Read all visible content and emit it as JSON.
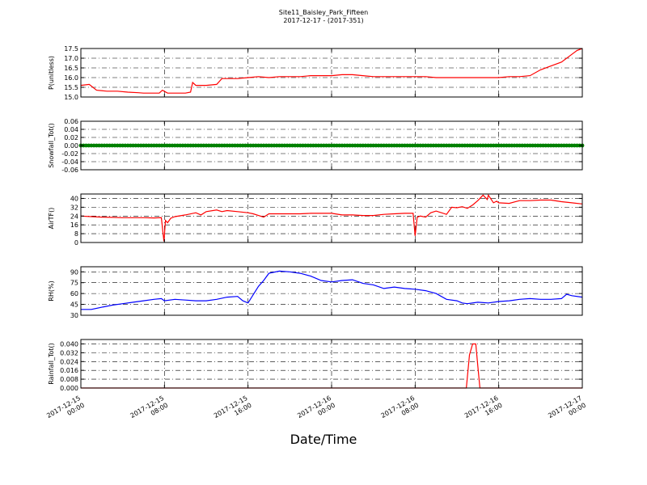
{
  "title": "Site11_Baisley_Park_Fifteen",
  "subtitle": "2017-12-17 - (2017-351)",
  "xlabel": "Date/Time",
  "x_ticks": [
    {
      "value": 0,
      "label": [
        "2017-12-15",
        "00:00"
      ]
    },
    {
      "value": 8,
      "label": [
        "2017-12-15",
        "08:00"
      ]
    },
    {
      "value": 16,
      "label": [
        "2017-12-15",
        "16:00"
      ]
    },
    {
      "value": 24,
      "label": [
        "2017-12-16",
        "00:00"
      ]
    },
    {
      "value": 32,
      "label": [
        "2017-12-16",
        "08:00"
      ]
    },
    {
      "value": 40,
      "label": [
        "2017-12-16",
        "16:00"
      ]
    },
    {
      "value": 48,
      "label": [
        "2017-12-17",
        "00:00"
      ]
    }
  ],
  "chart_data": [
    {
      "type": "line",
      "ylabel": "P(unitless)",
      "ylim": [
        15.0,
        17.5
      ],
      "yticks": [
        15.0,
        15.5,
        16.0,
        16.5,
        17.0,
        17.5
      ],
      "decimals": 1,
      "grid": true,
      "color": "#ff0000",
      "x": [
        0,
        0.8,
        1.5,
        2.5,
        3.5,
        4.5,
        5.5,
        6,
        7,
        7.5,
        7.8,
        8.3,
        9,
        10,
        10.5,
        10.7,
        11,
        12,
        13,
        13.5,
        15,
        16,
        17,
        18,
        19,
        20,
        21,
        22,
        23,
        24,
        25,
        26,
        27,
        28,
        29,
        30,
        31,
        32,
        33,
        34,
        35,
        36,
        37,
        38,
        39,
        40,
        41,
        42,
        43,
        44,
        45,
        46,
        47,
        47.5,
        48
      ],
      "y": [
        15.6,
        15.65,
        15.35,
        15.3,
        15.3,
        15.25,
        15.22,
        15.2,
        15.2,
        15.2,
        15.35,
        15.2,
        15.2,
        15.2,
        15.25,
        15.75,
        15.6,
        15.6,
        15.65,
        15.95,
        15.95,
        16.0,
        16.05,
        16.0,
        16.05,
        16.05,
        16.05,
        16.1,
        16.1,
        16.1,
        16.15,
        16.15,
        16.1,
        16.05,
        16.05,
        16.05,
        16.05,
        16.05,
        16.05,
        16.0,
        16.0,
        16.0,
        16.0,
        16.0,
        16.0,
        16.0,
        16.05,
        16.05,
        16.1,
        16.4,
        16.6,
        16.8,
        17.2,
        17.4,
        17.5
      ]
    },
    {
      "type": "scatter",
      "ylabel": "Snowfall_Tot()",
      "ylim": [
        -0.06,
        0.06
      ],
      "yticks": [
        -0.06,
        -0.04,
        -0.02,
        0.0,
        0.02,
        0.04,
        0.06
      ],
      "decimals": 2,
      "grid": true,
      "color": "#008000",
      "x_start": 0,
      "x_end": 48,
      "x_step": 0.25,
      "value": 0.0
    },
    {
      "type": "line",
      "ylabel": "AirTF()",
      "ylim": [
        0,
        44
      ],
      "yticks": [
        0,
        8,
        16,
        24,
        32,
        40
      ],
      "decimals": 0,
      "grid": true,
      "color": "#ff0000",
      "x": [
        0,
        1,
        2,
        3,
        4,
        5,
        6,
        7,
        7.7,
        7.95,
        8.1,
        8.3,
        8.6,
        9,
        10,
        11,
        11.5,
        12,
        13,
        13.5,
        14,
        15,
        16,
        16.5,
        17,
        17.5,
        18,
        19,
        20,
        21,
        22,
        23,
        24,
        25,
        26,
        27,
        28,
        29,
        30,
        31,
        31.8,
        32.0,
        32.2,
        32.5,
        33,
        33.5,
        34,
        35,
        35.5,
        36,
        36.5,
        37,
        37.5,
        38,
        38.5,
        38.9,
        39,
        39.5,
        39.8,
        40,
        41,
        42,
        43,
        44,
        45,
        46,
        47,
        48
      ],
      "y": [
        24,
        23.5,
        23,
        22.8,
        22.5,
        22.5,
        22.5,
        22.3,
        22.5,
        1,
        20,
        18,
        22,
        23.5,
        25,
        27,
        25,
        28,
        29.5,
        28,
        29,
        28,
        27,
        26,
        24.5,
        23,
        26,
        26,
        26,
        26,
        26.5,
        26.5,
        26.5,
        25,
        25,
        24.5,
        24.5,
        25.5,
        26,
        26.5,
        26.5,
        6,
        23,
        24,
        23,
        27,
        28.5,
        25.5,
        32,
        31.5,
        32.5,
        31,
        34,
        38,
        43,
        39,
        43,
        36,
        37.5,
        36,
        35.5,
        38,
        38,
        38.5,
        38.5,
        37,
        36,
        35
      ]
    },
    {
      "type": "line",
      "ylabel": "RH(%)",
      "ylim": [
        30,
        97
      ],
      "yticks": [
        30,
        45,
        60,
        75,
        90
      ],
      "decimals": 0,
      "grid": true,
      "color": "#0000ff",
      "x": [
        0,
        1,
        2,
        3,
        4,
        5,
        6,
        7,
        7.7,
        8,
        9,
        10,
        11,
        12,
        13,
        14,
        15,
        15.5,
        16,
        17,
        17.5,
        18,
        19,
        20,
        21,
        22,
        23,
        24,
        25,
        26,
        27,
        28,
        29,
        30,
        31,
        32,
        33,
        34,
        35,
        36,
        36.5,
        37,
        38,
        39,
        40,
        41,
        42,
        43,
        44,
        45,
        46,
        46.5,
        47,
        48
      ],
      "y": [
        38,
        38,
        41,
        44,
        46,
        48,
        50,
        52,
        53,
        50,
        52,
        51,
        50,
        50,
        52,
        55,
        56,
        50,
        47,
        70,
        78,
        88,
        91,
        90,
        88,
        84,
        78,
        76,
        78,
        79,
        74,
        72,
        67,
        69,
        67,
        66,
        64,
        60,
        52,
        50,
        47,
        46,
        48,
        47,
        49,
        50,
        52,
        53,
        52,
        52,
        53,
        59,
        57,
        55
      ]
    },
    {
      "type": "line",
      "ylabel": "Rainfall_Tot()",
      "ylim": [
        0,
        0.044
      ],
      "yticks": [
        0.0,
        0.008,
        0.016,
        0.024,
        0.032,
        0.04
      ],
      "decimals": 3,
      "grid": true,
      "color": "#ff0000",
      "x": [
        0,
        36.5,
        36.9,
        37.2,
        37.5,
        37.8,
        38.0,
        38.2,
        48
      ],
      "y": [
        0,
        0,
        0,
        0.03,
        0.04,
        0.04,
        0.02,
        0,
        0
      ]
    }
  ]
}
